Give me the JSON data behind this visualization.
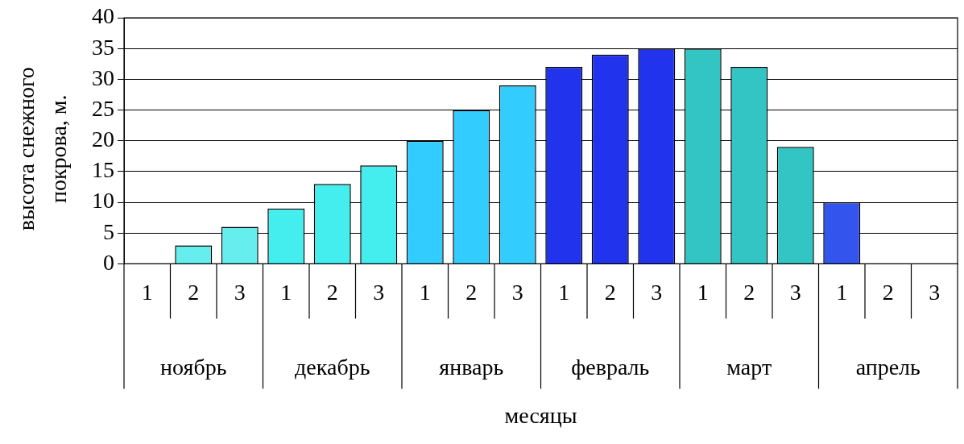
{
  "chart_data": {
    "type": "bar",
    "categories": [
      "1",
      "2",
      "3",
      "1",
      "2",
      "3",
      "1",
      "2",
      "3",
      "1",
      "2",
      "3",
      "1",
      "2",
      "3",
      "1",
      "2",
      "3"
    ],
    "values": [
      0,
      3,
      6,
      9,
      13,
      16,
      20,
      25,
      29,
      32,
      34,
      35,
      35,
      32,
      19,
      10,
      0,
      0
    ],
    "colors": [
      "#66eeee",
      "#66eeee",
      "#66eeee",
      "#44eeee",
      "#44eeee",
      "#44eeee",
      "#33ccff",
      "#33ccff",
      "#33ccff",
      "#2233ee",
      "#2233ee",
      "#2233ee",
      "#33c4c4",
      "#33c4c4",
      "#33c4c4",
      "#3355ee",
      "#3355ee",
      "#3355ee"
    ],
    "ylim": [
      0,
      40
    ],
    "yticks": [
      0,
      5,
      10,
      15,
      20,
      25,
      30,
      35,
      40
    ],
    "grid": "y",
    "xlabel": "месяцы",
    "ylabel": "высота снежного покрова, м.",
    "annotations": [
      "ноябрь",
      "декабрь",
      "январь",
      "февраль",
      "март",
      "апрель"
    ]
  }
}
